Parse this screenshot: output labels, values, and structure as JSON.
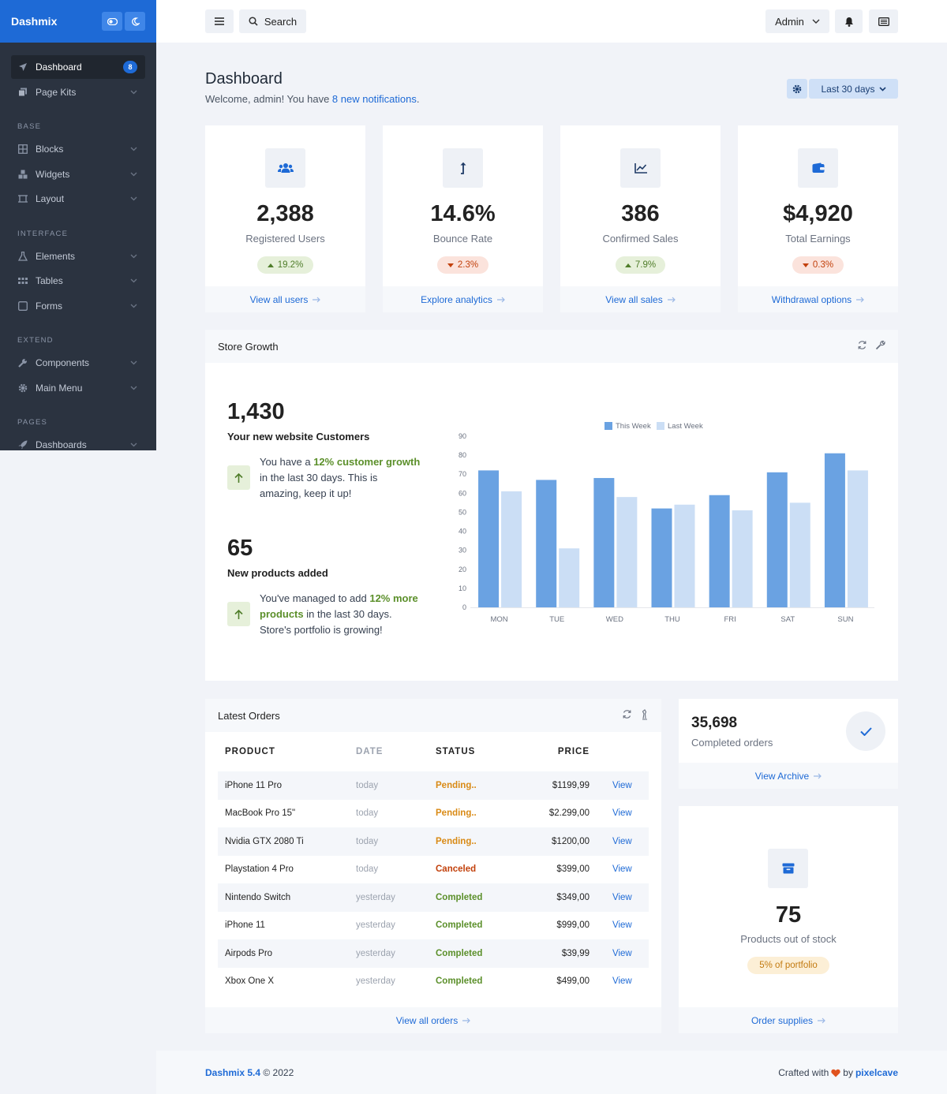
{
  "brand": {
    "name": "Dashmix"
  },
  "sidebar": {
    "top_items": [
      {
        "label": "Dashboard",
        "badge": "8"
      },
      {
        "label": "Page Kits"
      }
    ],
    "sections": [
      {
        "heading": "BASE",
        "items": [
          {
            "label": "Blocks"
          },
          {
            "label": "Widgets"
          },
          {
            "label": "Layout"
          }
        ]
      },
      {
        "heading": "INTERFACE",
        "items": [
          {
            "label": "Elements"
          },
          {
            "label": "Tables"
          },
          {
            "label": "Forms"
          }
        ]
      },
      {
        "heading": "EXTEND",
        "items": [
          {
            "label": "Components"
          },
          {
            "label": "Main Menu"
          }
        ]
      },
      {
        "heading": "PAGES",
        "items": [
          {
            "label": "Dashboards"
          }
        ]
      }
    ]
  },
  "header": {
    "search_label": "Search",
    "user_label": "Admin"
  },
  "page": {
    "title": "Dashboard",
    "subtitle_prefix": "Welcome, admin! You have ",
    "subtitle_link": "8 new notifications",
    "subtitle_suffix": ".",
    "range_label": "Last 30 days"
  },
  "stats": [
    {
      "value": "2,388",
      "label": "Registered Users",
      "change": "19.2%",
      "trend": "up",
      "link": "View all users",
      "icon": "users-icon"
    },
    {
      "value": "14.6%",
      "label": "Bounce Rate",
      "change": "2.3%",
      "trend": "down",
      "link": "Explore analytics",
      "icon": "level-up-icon"
    },
    {
      "value": "386",
      "label": "Confirmed Sales",
      "change": "7.9%",
      "trend": "up",
      "link": "View all sales",
      "icon": "chart-line-icon"
    },
    {
      "value": "$4,920",
      "label": "Total Earnings",
      "change": "0.3%",
      "trend": "down",
      "link": "Withdrawal options",
      "icon": "wallet-icon"
    }
  ],
  "store_growth": {
    "title": "Store Growth",
    "customers": {
      "value": "1,430",
      "label": "Your new website Customers",
      "note_a": "You have a ",
      "note_hl": "12% customer growth",
      "note_b": " in the last 30 days. This is amazing, keep it up!"
    },
    "products": {
      "value": "65",
      "label": "New products added",
      "note_a": "You've managed to add ",
      "note_hl": "12% more products",
      "note_b": " in the last 30 days. Store's portfolio is growing!"
    }
  },
  "chart_data": {
    "type": "bar",
    "categories": [
      "MON",
      "TUE",
      "WED",
      "THU",
      "FRI",
      "SAT",
      "SUN"
    ],
    "series": [
      {
        "name": "This Week",
        "values": [
          72,
          67,
          68,
          52,
          59,
          71,
          81
        ],
        "color": "#6aa2e2"
      },
      {
        "name": "Last Week",
        "values": [
          61,
          31,
          58,
          54,
          51,
          55,
          72
        ],
        "color": "#cbdef5"
      }
    ],
    "yticks": [
      "0",
      "10",
      "20",
      "30",
      "40",
      "50",
      "60",
      "70",
      "80",
      "90"
    ],
    "ylim": [
      0,
      90
    ],
    "legend": "top-center",
    "grid": false
  },
  "orders": {
    "title": "Latest Orders",
    "columns": [
      "PRODUCT",
      "DATE",
      "STATUS",
      "PRICE"
    ],
    "rows": [
      {
        "product": "iPhone 11 Pro",
        "date": "today",
        "status": "Pending..",
        "status_kind": "pending",
        "price": "$1199,99",
        "action": "View"
      },
      {
        "product": "MacBook Pro 15\"",
        "date": "today",
        "status": "Pending..",
        "status_kind": "pending",
        "price": "$2.299,00",
        "action": "View"
      },
      {
        "product": "Nvidia GTX 2080 Ti",
        "date": "today",
        "status": "Pending..",
        "status_kind": "pending",
        "price": "$1200,00",
        "action": "View"
      },
      {
        "product": "Playstation 4 Pro",
        "date": "today",
        "status": "Canceled",
        "status_kind": "canceled",
        "price": "$399,00",
        "action": "View"
      },
      {
        "product": "Nintendo Switch",
        "date": "yesterday",
        "status": "Completed",
        "status_kind": "completed",
        "price": "$349,00",
        "action": "View"
      },
      {
        "product": "iPhone 11",
        "date": "yesterday",
        "status": "Completed",
        "status_kind": "completed",
        "price": "$999,00",
        "action": "View"
      },
      {
        "product": "Airpods Pro",
        "date": "yesterday",
        "status": "Completed",
        "status_kind": "completed",
        "price": "$39,99",
        "action": "View"
      },
      {
        "product": "Xbox One X",
        "date": "yesterday",
        "status": "Completed",
        "status_kind": "completed",
        "price": "$499,00",
        "action": "View"
      }
    ],
    "footer_link": "View all orders"
  },
  "completed": {
    "value": "35,698",
    "label": "Completed orders",
    "link": "View Archive"
  },
  "stock": {
    "value": "75",
    "label": "Products out of stock",
    "chip": "5% of portfolio",
    "link": "Order supplies"
  },
  "footer": {
    "version": "Dashmix 5.4",
    "copyright": " © 2022",
    "crafted": "Crafted with",
    "by": "by",
    "author": "pixelcave"
  },
  "colors": {
    "primary": "#1e6ad6",
    "sidebar": "#2b3340",
    "success": "#5b8f2a",
    "warning": "#d98a15",
    "danger": "#c2410c"
  }
}
